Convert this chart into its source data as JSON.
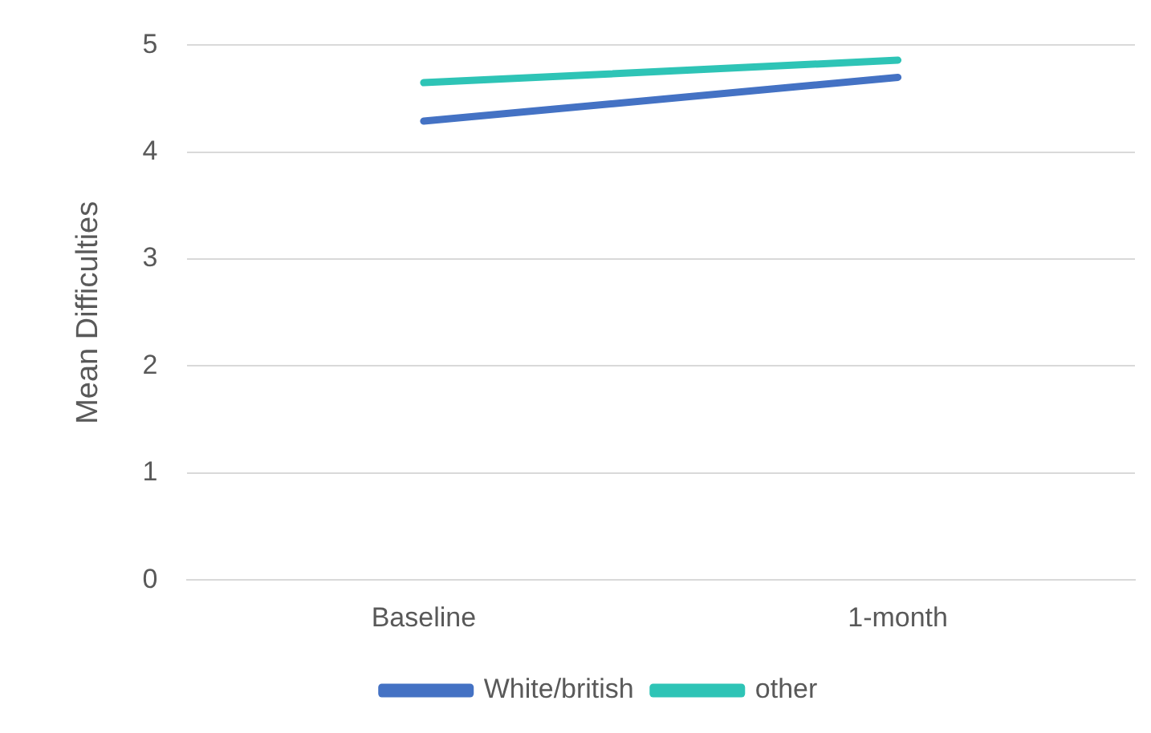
{
  "chart_data": {
    "type": "line",
    "ylabel": "Mean Difficulties",
    "categories": [
      "Baseline",
      "1-month"
    ],
    "series": [
      {
        "name": "White/british",
        "color": "#4472c4",
        "values": [
          4.29,
          4.7
        ]
      },
      {
        "name": "other",
        "color": "#2ec4b6",
        "values": [
          4.65,
          4.86
        ]
      }
    ],
    "ylim": [
      0,
      5
    ],
    "yticks": [
      0,
      1,
      2,
      3,
      4,
      5
    ],
    "grid": "y",
    "legend": "bottom",
    "marker": "none",
    "line_style": "solid"
  }
}
